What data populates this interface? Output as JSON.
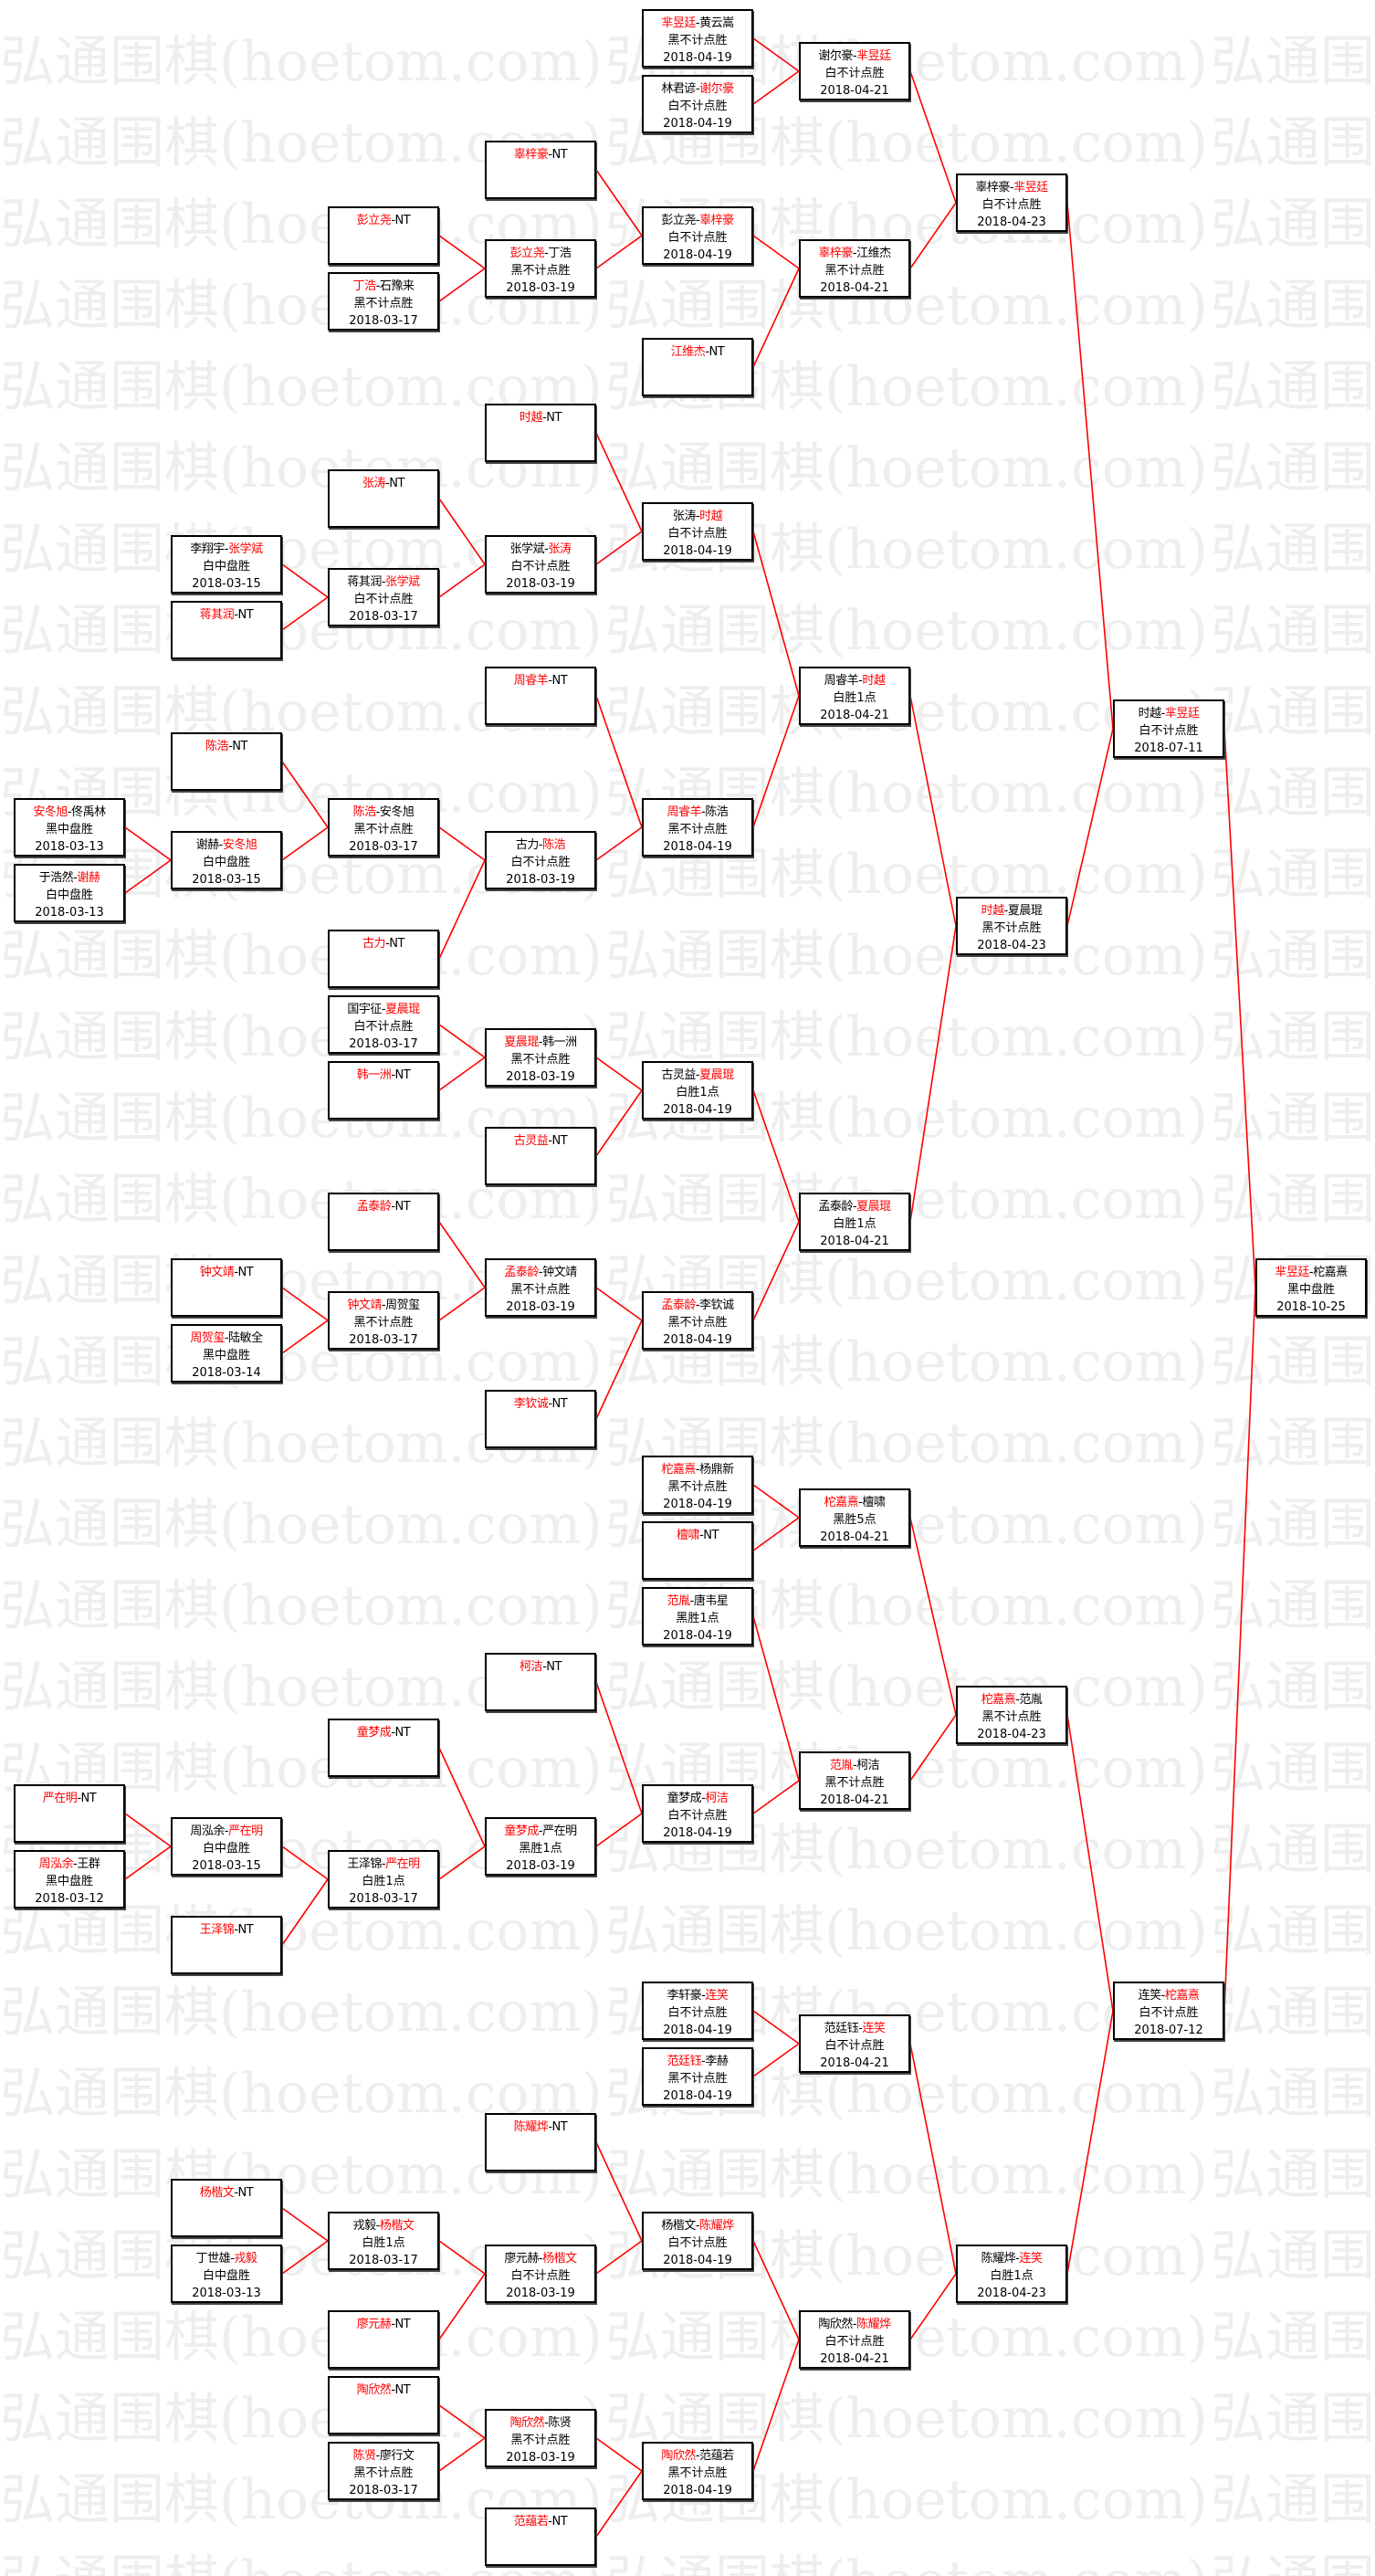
{
  "watermark": "弘通围棋(hoetom.com)",
  "separator": "-",
  "colors": {
    "winner": "#ff0000",
    "connector": "#ff0000",
    "border": "#000000"
  },
  "matches": [
    {
      "players": [
        "安冬旭",
        "佟禹林"
      ],
      "winner": 0,
      "result": "黑中盘胜",
      "date": "2018-03-13"
    },
    {
      "players": [
        "于浩然",
        "谢赫"
      ],
      "winner": 1,
      "result": "白中盘胜",
      "date": "2018-03-13"
    },
    {
      "players": [
        "严在明",
        "NT"
      ],
      "winner": 0
    },
    {
      "players": [
        "周泓余",
        "王群"
      ],
      "winner": 0,
      "result": "黑中盘胜",
      "date": "2018-03-12"
    },
    {
      "players": [
        "李翔宇",
        "张学斌"
      ],
      "winner": 1,
      "result": "白中盘胜",
      "date": "2018-03-15"
    },
    {
      "players": [
        "蒋其润",
        "NT"
      ],
      "winner": 0
    },
    {
      "players": [
        "陈浩",
        "NT"
      ],
      "winner": 0
    },
    {
      "players": [
        "谢赫",
        "安冬旭"
      ],
      "winner": 1,
      "result": "白中盘胜",
      "date": "2018-03-15"
    },
    {
      "players": [
        "钟文靖",
        "NT"
      ],
      "winner": 0
    },
    {
      "players": [
        "周贺玺",
        "陆敏全"
      ],
      "winner": 0,
      "result": "黑中盘胜",
      "date": "2018-03-14"
    },
    {
      "players": [
        "周泓余",
        "严在明"
      ],
      "winner": 1,
      "result": "白中盘胜",
      "date": "2018-03-15"
    },
    {
      "players": [
        "王泽锦",
        "NT"
      ],
      "winner": 0
    },
    {
      "players": [
        "杨楷文",
        "NT"
      ],
      "winner": 0
    },
    {
      "players": [
        "丁世雄",
        "戎毅"
      ],
      "winner": 1,
      "result": "白中盘胜",
      "date": "2018-03-13"
    },
    {
      "players": [
        "彭立尧",
        "NT"
      ],
      "winner": 0
    },
    {
      "players": [
        "丁浩",
        "石豫来"
      ],
      "winner": 0,
      "result": "黑不计点胜",
      "date": "2018-03-17"
    },
    {
      "players": [
        "张涛",
        "NT"
      ],
      "winner": 0
    },
    {
      "players": [
        "蒋其润",
        "张学斌"
      ],
      "winner": 1,
      "result": "白不计点胜",
      "date": "2018-03-17"
    },
    {
      "players": [
        "陈浩",
        "安冬旭"
      ],
      "winner": 0,
      "result": "黑不计点胜",
      "date": "2018-03-17"
    },
    {
      "players": [
        "古力",
        "NT"
      ],
      "winner": 0
    },
    {
      "players": [
        "国宇征",
        "夏晨琨"
      ],
      "winner": 1,
      "result": "白不计点胜",
      "date": "2018-03-17"
    },
    {
      "players": [
        "韩一洲",
        "NT"
      ],
      "winner": 0
    },
    {
      "players": [
        "孟泰龄",
        "NT"
      ],
      "winner": 0
    },
    {
      "players": [
        "钟文靖",
        "周贺玺"
      ],
      "winner": 0,
      "result": "黑不计点胜",
      "date": "2018-03-17"
    },
    {
      "players": [
        "童梦成",
        "NT"
      ],
      "winner": 0
    },
    {
      "players": [
        "王泽锦",
        "严在明"
      ],
      "winner": 1,
      "result": "白胜1点",
      "date": "2018-03-17"
    },
    {
      "players": [
        "戎毅",
        "杨楷文"
      ],
      "winner": 1,
      "result": "白胜1点",
      "date": "2018-03-17"
    },
    {
      "players": [
        "廖元赫",
        "NT"
      ],
      "winner": 0
    },
    {
      "players": [
        "陶欣然",
        "NT"
      ],
      "winner": 0
    },
    {
      "players": [
        "陈贤",
        "廖行文"
      ],
      "winner": 0,
      "result": "黑不计点胜",
      "date": "2018-03-17"
    },
    {
      "players": [
        "辜梓豪",
        "NT"
      ],
      "winner": 0
    },
    {
      "players": [
        "彭立尧",
        "丁浩"
      ],
      "winner": 0,
      "result": "黑不计点胜",
      "date": "2018-03-19"
    },
    {
      "players": [
        "时越",
        "NT"
      ],
      "winner": 0
    },
    {
      "players": [
        "张学斌",
        "张涛"
      ],
      "winner": 1,
      "result": "白不计点胜",
      "date": "2018-03-19"
    },
    {
      "players": [
        "周睿羊",
        "NT"
      ],
      "winner": 0
    },
    {
      "players": [
        "古力",
        "陈浩"
      ],
      "winner": 1,
      "result": "白不计点胜",
      "date": "2018-03-19"
    },
    {
      "players": [
        "夏晨琨",
        "韩一洲"
      ],
      "winner": 0,
      "result": "黑不计点胜",
      "date": "2018-03-19"
    },
    {
      "players": [
        "古灵益",
        "NT"
      ],
      "winner": 0
    },
    {
      "players": [
        "孟泰龄",
        "钟文靖"
      ],
      "winner": 0,
      "result": "黑不计点胜",
      "date": "2018-03-19"
    },
    {
      "players": [
        "李钦诚",
        "NT"
      ],
      "winner": 0
    },
    {
      "players": [
        "柯洁",
        "NT"
      ],
      "winner": 0
    },
    {
      "players": [
        "童梦成",
        "严在明"
      ],
      "winner": 0,
      "result": "黑胜1点",
      "date": "2018-03-19"
    },
    {
      "players": [
        "陈耀烨",
        "NT"
      ],
      "winner": 0
    },
    {
      "players": [
        "廖元赫",
        "杨楷文"
      ],
      "winner": 1,
      "result": "白不计点胜",
      "date": "2018-03-19"
    },
    {
      "players": [
        "陶欣然",
        "陈贤"
      ],
      "winner": 0,
      "result": "黑不计点胜",
      "date": "2018-03-19"
    },
    {
      "players": [
        "范蕴若",
        "NT"
      ],
      "winner": 0
    },
    {
      "players": [
        "芈昱廷",
        "黄云嵩"
      ],
      "winner": 0,
      "result": "黑不计点胜",
      "date": "2018-04-19"
    },
    {
      "players": [
        "林君谚",
        "谢尔豪"
      ],
      "winner": 1,
      "result": "白不计点胜",
      "date": "2018-04-19"
    },
    {
      "players": [
        "彭立尧",
        "辜梓豪"
      ],
      "winner": 1,
      "result": "白不计点胜",
      "date": "2018-04-19"
    },
    {
      "players": [
        "江维杰",
        "NT"
      ],
      "winner": 0
    },
    {
      "players": [
        "张涛",
        "时越"
      ],
      "winner": 1,
      "result": "白不计点胜",
      "date": "2018-04-19"
    },
    {
      "players": [
        "周睿羊",
        "陈浩"
      ],
      "winner": 0,
      "result": "黑不计点胜",
      "date": "2018-04-19"
    },
    {
      "players": [
        "古灵益",
        "夏晨琨"
      ],
      "winner": 1,
      "result": "白胜1点",
      "date": "2018-04-19"
    },
    {
      "players": [
        "孟泰龄",
        "李钦诚"
      ],
      "winner": 0,
      "result": "黑不计点胜",
      "date": "2018-04-19"
    },
    {
      "players": [
        "柁嘉熹",
        "杨鼎新"
      ],
      "winner": 0,
      "result": "黑不计点胜",
      "date": "2018-04-19"
    },
    {
      "players": [
        "檀啸",
        "NT"
      ],
      "winner": 0
    },
    {
      "players": [
        "范胤",
        "唐韦星"
      ],
      "winner": 0,
      "result": "黑胜1点",
      "date": "2018-04-19"
    },
    {
      "players": [
        "童梦成",
        "柯洁"
      ],
      "winner": 1,
      "result": "白不计点胜",
      "date": "2018-04-19"
    },
    {
      "players": [
        "李轩豪",
        "连笑"
      ],
      "winner": 1,
      "result": "白不计点胜",
      "date": "2018-04-19"
    },
    {
      "players": [
        "范廷钰",
        "李赫"
      ],
      "winner": 0,
      "result": "黑不计点胜",
      "date": "2018-04-19"
    },
    {
      "players": [
        "杨楷文",
        "陈耀烨"
      ],
      "winner": 1,
      "result": "白不计点胜",
      "date": "2018-04-19"
    },
    {
      "players": [
        "陶欣然",
        "范蕴若"
      ],
      "winner": 0,
      "result": "黑不计点胜",
      "date": "2018-04-19"
    },
    {
      "players": [
        "谢尔豪",
        "芈昱廷"
      ],
      "winner": 1,
      "result": "白不计点胜",
      "date": "2018-04-21"
    },
    {
      "players": [
        "辜梓豪",
        "江维杰"
      ],
      "winner": 0,
      "result": "黑不计点胜",
      "date": "2018-04-21"
    },
    {
      "players": [
        "周睿羊",
        "时越"
      ],
      "winner": 1,
      "result": "白胜1点",
      "date": "2018-04-21"
    },
    {
      "players": [
        "孟泰龄",
        "夏晨琨"
      ],
      "winner": 1,
      "result": "白胜1点",
      "date": "2018-04-21"
    },
    {
      "players": [
        "柁嘉熹",
        "檀啸"
      ],
      "winner": 0,
      "result": "黑胜5点",
      "date": "2018-04-21"
    },
    {
      "players": [
        "范胤",
        "柯洁"
      ],
      "winner": 0,
      "result": "黑不计点胜",
      "date": "2018-04-21"
    },
    {
      "players": [
        "范廷钰",
        "连笑"
      ],
      "winner": 1,
      "result": "白不计点胜",
      "date": "2018-04-21"
    },
    {
      "players": [
        "陶欣然",
        "陈耀烨"
      ],
      "winner": 1,
      "result": "白不计点胜",
      "date": "2018-04-21"
    },
    {
      "players": [
        "辜梓豪",
        "芈昱廷"
      ],
      "winner": 1,
      "result": "白不计点胜",
      "date": "2018-04-23"
    },
    {
      "players": [
        "时越",
        "夏晨琨"
      ],
      "winner": 0,
      "result": "黑不计点胜",
      "date": "2018-04-23"
    },
    {
      "players": [
        "柁嘉熹",
        "范胤"
      ],
      "winner": 0,
      "result": "黑不计点胜",
      "date": "2018-04-23"
    },
    {
      "players": [
        "陈耀烨",
        "连笑"
      ],
      "winner": 1,
      "result": "白胜1点",
      "date": "2018-04-23"
    },
    {
      "players": [
        "时越",
        "芈昱廷"
      ],
      "winner": 1,
      "result": "白不计点胜",
      "date": "2018-07-11"
    },
    {
      "players": [
        "连笑",
        "柁嘉熹"
      ],
      "winner": 1,
      "result": "白不计点胜",
      "date": "2018-07-12"
    },
    {
      "players": [
        "芈昱廷",
        "柁嘉熹"
      ],
      "winner": 0,
      "result": "黑中盘胜",
      "date": "2018-10-25"
    }
  ]
}
